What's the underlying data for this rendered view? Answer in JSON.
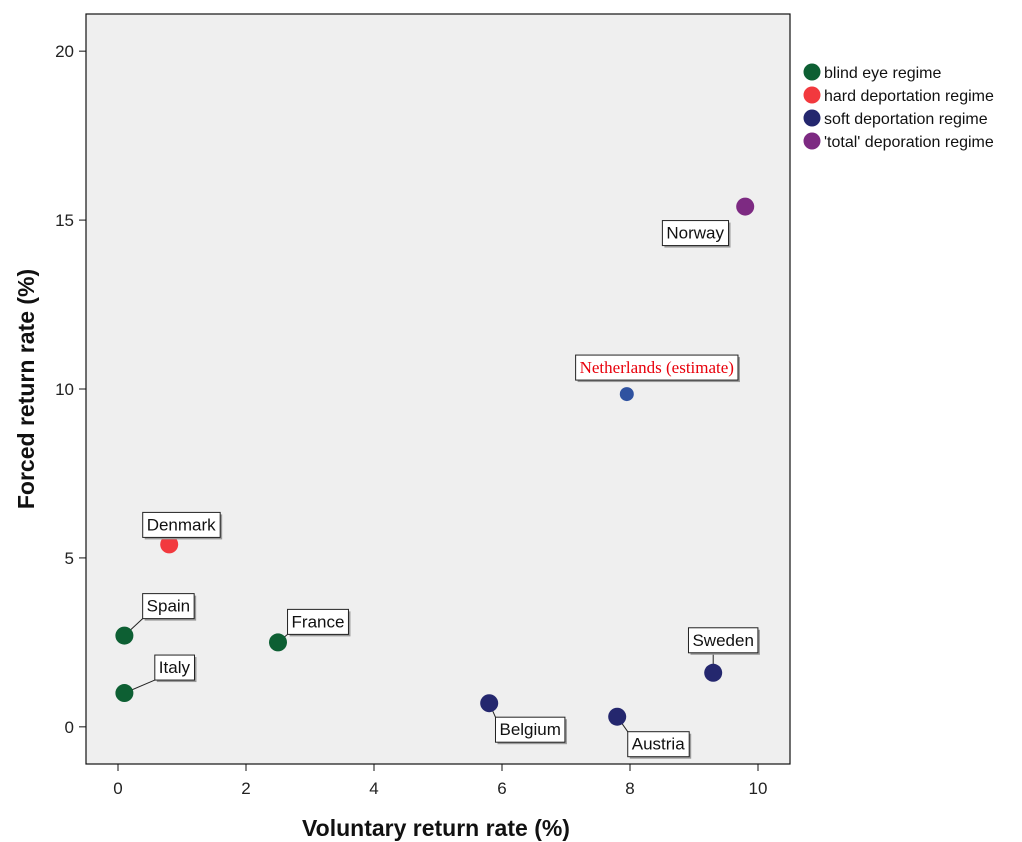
{
  "chart_data": {
    "type": "scatter",
    "title": "",
    "xlabel": "Voluntary return rate (%)",
    "ylabel": "Forced return rate (%)",
    "xlim": [
      -0.5,
      10.5
    ],
    "ylim": [
      -1.1,
      21.1
    ],
    "x_ticks": [
      0,
      2,
      4,
      6,
      8,
      10
    ],
    "y_ticks": [
      0,
      5,
      10,
      15,
      20
    ],
    "grid": false,
    "legend_position": "right",
    "series": [
      {
        "name": "blind eye regime",
        "color": "#0d5f33",
        "points": [
          {
            "label": "Spain",
            "x": 0.1,
            "y": 2.7
          },
          {
            "label": "Italy",
            "x": 0.1,
            "y": 1.0
          },
          {
            "label": "France",
            "x": 2.5,
            "y": 2.5
          }
        ]
      },
      {
        "name": "hard deportation regime",
        "color": "#f2393e",
        "points": [
          {
            "label": "Denmark",
            "x": 0.8,
            "y": 5.4
          }
        ]
      },
      {
        "name": "soft deportation regime",
        "color": "#24276e",
        "points": [
          {
            "label": "Belgium",
            "x": 5.8,
            "y": 0.7
          },
          {
            "label": "Austria",
            "x": 7.8,
            "y": 0.3
          },
          {
            "label": "Sweden",
            "x": 9.3,
            "y": 1.6
          }
        ]
      },
      {
        "name": "'total' deporation regime",
        "color": "#7d2a82",
        "points": [
          {
            "label": "Norway",
            "x": 9.8,
            "y": 15.4
          }
        ]
      }
    ],
    "annotation": {
      "label": "Netherlands (estimate)",
      "x": 7.95,
      "y": 9.85,
      "color": "#2f52a0",
      "label_color": "#e8000b"
    }
  }
}
